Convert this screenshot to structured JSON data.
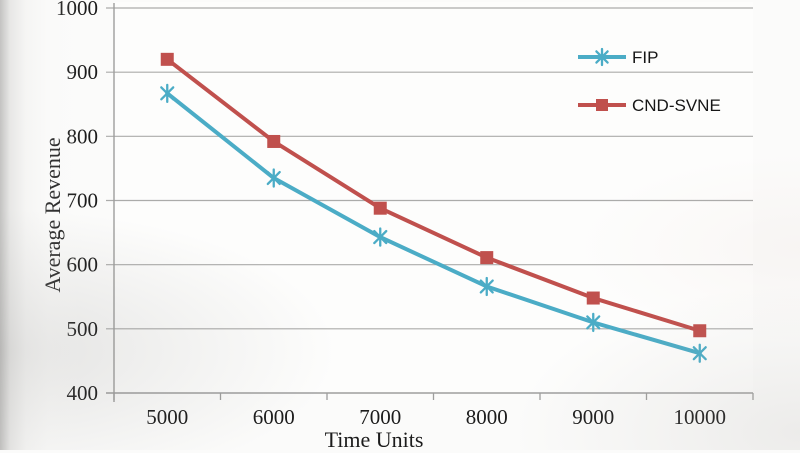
{
  "chart_data": {
    "type": "line",
    "title": "",
    "xlabel": "Time Units",
    "ylabel": "Average Revenue",
    "categories": [
      5000,
      6000,
      7000,
      8000,
      9000,
      10000
    ],
    "y_ticks": [
      400,
      500,
      600,
      700,
      800,
      900,
      1000
    ],
    "ylim": [
      400,
      1000
    ],
    "grid": "horizontal-only",
    "legend_position": "inside-top-right",
    "grid_color": "#ABABAA",
    "axis_color": "#9E9E9D",
    "text_color": "#1c1c1c",
    "legend_text_color": "#161616",
    "series": [
      {
        "name": "FIP",
        "color": "#4BACC6",
        "marker": "asterisk",
        "values": [
          867,
          735,
          643,
          566,
          510,
          462
        ]
      },
      {
        "name": "CND-SVNE",
        "color": "#C0504D",
        "marker": "square",
        "values": [
          920,
          792,
          688,
          611,
          548,
          497
        ]
      }
    ]
  }
}
